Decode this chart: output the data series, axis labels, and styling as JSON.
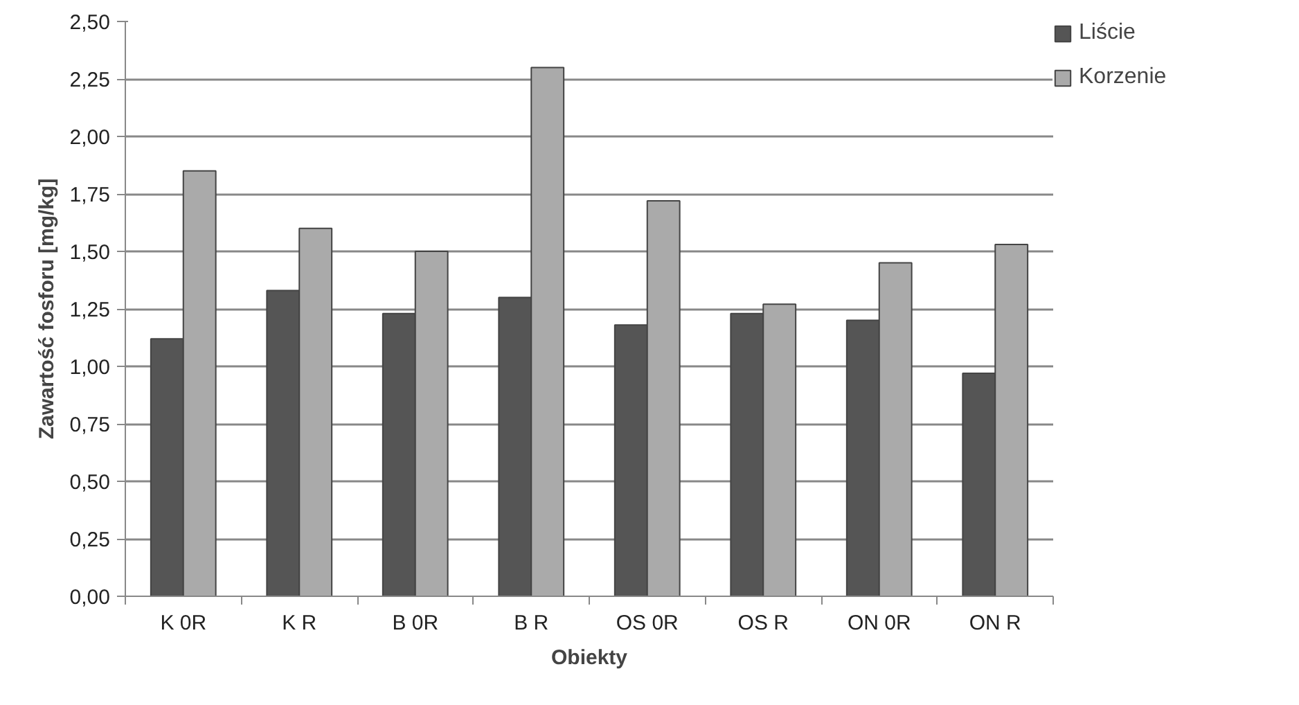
{
  "chart_data": {
    "type": "bar",
    "xlabel": "Obiekty",
    "ylabel": "Zawartość fosforu [mg/kg]",
    "categories": [
      "K 0R",
      "K R",
      "B 0R",
      "B R",
      "OS 0R",
      "OS R",
      "ON 0R",
      "ON R"
    ],
    "series": [
      {
        "name": "Liście",
        "color": "#555555",
        "values": [
          1.12,
          1.33,
          1.23,
          1.3,
          1.18,
          1.23,
          1.2,
          0.97
        ]
      },
      {
        "name": "Korzenie",
        "color": "#aaaaaa",
        "values": [
          1.85,
          1.6,
          1.5,
          2.3,
          1.72,
          1.27,
          1.45,
          1.53
        ]
      }
    ],
    "ylim": [
      0,
      2.5
    ],
    "yticks": [
      {
        "value": 0,
        "label": "0,00"
      },
      {
        "value": 0.25,
        "label": "0,25"
      },
      {
        "value": 0.5,
        "label": "0,50"
      },
      {
        "value": 0.75,
        "label": "0,75"
      },
      {
        "value": 1.0,
        "label": "1,00"
      },
      {
        "value": 1.25,
        "label": "1,25"
      },
      {
        "value": 1.5,
        "label": "1,50"
      },
      {
        "value": 1.75,
        "label": "1,75"
      },
      {
        "value": 2.0,
        "label": "2,00"
      },
      {
        "value": 2.25,
        "label": "2,25"
      },
      {
        "value": 2.5,
        "label": "2,50"
      }
    ],
    "grid": "y",
    "legend": "right"
  }
}
